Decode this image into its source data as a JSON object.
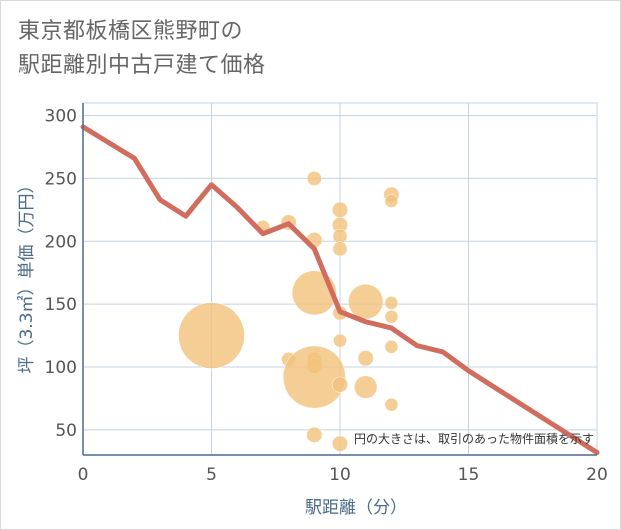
{
  "chart_data": {
    "type": "scatter",
    "title_lines": [
      "東京都板橋区熊野町の",
      "駅距離別中古戸建て価格"
    ],
    "xlabel": "駅距離（分）",
    "ylabel": "坪（3.3㎡）単価（万円）",
    "note": "円の大きさは、取引のあった物件面積を示す",
    "xlim": [
      0,
      20
    ],
    "ylim": [
      30,
      310
    ],
    "xticks": [
      0,
      5,
      10,
      15,
      20
    ],
    "yticks": [
      50,
      100,
      150,
      200,
      250,
      300
    ],
    "grid": true,
    "colors": {
      "bubble": "#f3c27a",
      "line": "#d06d5e",
      "grid": "#c5d3e0",
      "axis": "#4a6b8a"
    },
    "bubbles": [
      {
        "x": 5,
        "y": 125,
        "size": 5.5
      },
      {
        "x": 7,
        "y": 211,
        "size": 1.2
      },
      {
        "x": 8,
        "y": 215,
        "size": 1.3
      },
      {
        "x": 8,
        "y": 106,
        "size": 1.2
      },
      {
        "x": 9,
        "y": 250,
        "size": 1.2
      },
      {
        "x": 9,
        "y": 201,
        "size": 1.3
      },
      {
        "x": 9,
        "y": 159,
        "size": 3.7
      },
      {
        "x": 9,
        "y": 106,
        "size": 1.2
      },
      {
        "x": 9,
        "y": 101,
        "size": 1.3
      },
      {
        "x": 9,
        "y": 92,
        "size": 5.2
      },
      {
        "x": 9,
        "y": 46,
        "size": 1.3
      },
      {
        "x": 10,
        "y": 225,
        "size": 1.3
      },
      {
        "x": 10,
        "y": 213,
        "size": 1.3
      },
      {
        "x": 10,
        "y": 204,
        "size": 1.2
      },
      {
        "x": 10,
        "y": 194,
        "size": 1.2
      },
      {
        "x": 10,
        "y": 143,
        "size": 1.2
      },
      {
        "x": 10,
        "y": 121,
        "size": 1.1
      },
      {
        "x": 10,
        "y": 86,
        "size": 1.3
      },
      {
        "x": 10,
        "y": 39,
        "size": 1.3
      },
      {
        "x": 11,
        "y": 152,
        "size": 2.9
      },
      {
        "x": 11,
        "y": 107,
        "size": 1.3
      },
      {
        "x": 11,
        "y": 84,
        "size": 1.9
      },
      {
        "x": 12,
        "y": 237,
        "size": 1.3
      },
      {
        "x": 12,
        "y": 232,
        "size": 1.1
      },
      {
        "x": 12,
        "y": 151,
        "size": 1.1
      },
      {
        "x": 12,
        "y": 140,
        "size": 1.1
      },
      {
        "x": 12,
        "y": 116,
        "size": 1.1
      },
      {
        "x": 12,
        "y": 70,
        "size": 1.1
      }
    ],
    "trend": {
      "x": [
        0,
        2,
        3,
        4,
        5,
        6,
        7,
        8,
        9,
        10,
        11,
        12,
        13,
        14,
        15,
        16,
        17,
        18,
        19,
        20
      ],
      "y": [
        291,
        266,
        233,
        220,
        245,
        227,
        206,
        214,
        194,
        144,
        136,
        131,
        117,
        112,
        97,
        84,
        71,
        58,
        45,
        32
      ]
    }
  }
}
